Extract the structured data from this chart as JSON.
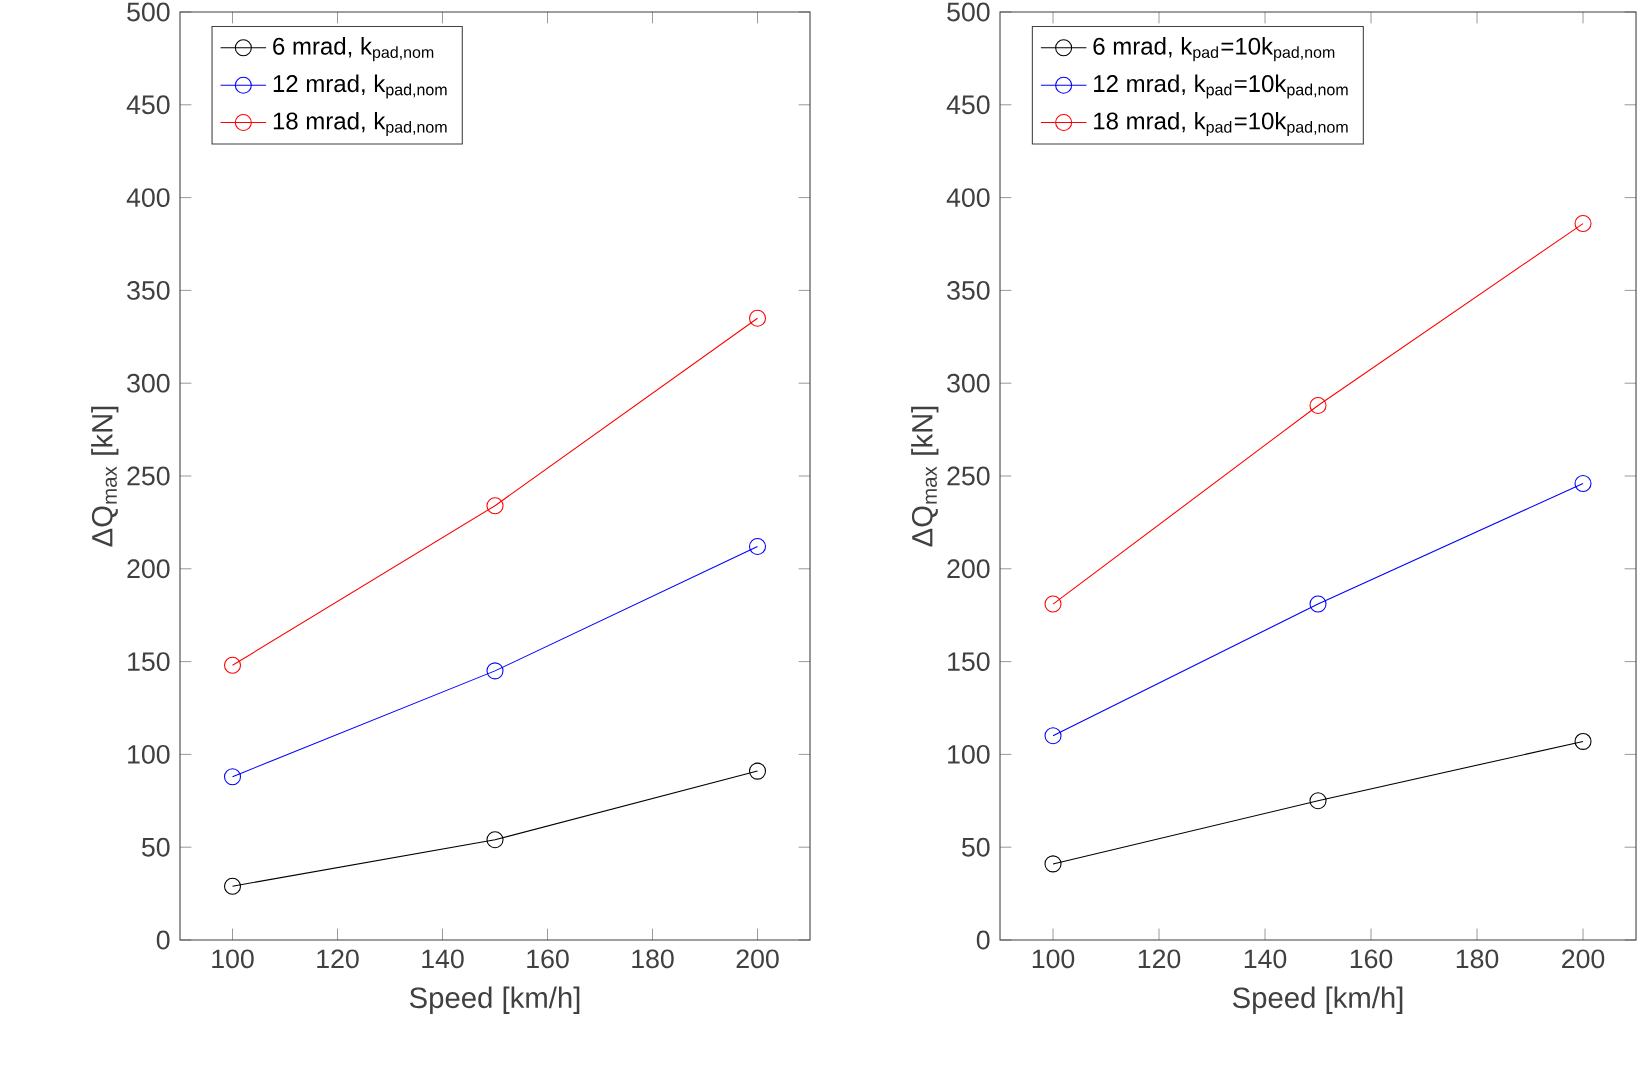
{
  "chart_data": [
    {
      "type": "line",
      "xlabel": "Speed [km/h]",
      "ylabel": "ΔQ$_{max}$ [kN]",
      "x": [
        100,
        150,
        200
      ],
      "series": [
        {
          "name": "6 mrad, k$_{pad,nom}$",
          "color": "#000000",
          "values": [
            29,
            54,
            91
          ]
        },
        {
          "name": "12 mrad, k$_{pad,nom}$",
          "color": "#0000ff",
          "values": [
            88,
            145,
            212
          ]
        },
        {
          "name": "18 mrad, k$_{pad,nom}$",
          "color": "#ff0000",
          "values": [
            148,
            234,
            335
          ]
        }
      ],
      "xlim": [
        90,
        210
      ],
      "ylim": [
        0,
        500
      ],
      "xticks": [
        100,
        120,
        140,
        160,
        180,
        200
      ],
      "yticks": [
        0,
        50,
        100,
        150,
        200,
        250,
        300,
        350,
        400,
        450,
        500
      ],
      "marker": "circle",
      "legend": "top left"
    },
    {
      "type": "line",
      "xlabel": "Speed [km/h]",
      "ylabel": "ΔQ$_{max}$ [kN]",
      "x": [
        100,
        150,
        200
      ],
      "series": [
        {
          "name": "6 mrad, k$_{pad}$=10k$_{pad,nom}$",
          "color": "#000000",
          "values": [
            41,
            75,
            107
          ]
        },
        {
          "name": "12 mrad, k$_{pad}$=10k$_{pad,nom}$",
          "color": "#0000ff",
          "values": [
            110,
            181,
            246
          ]
        },
        {
          "name": "18 mrad, k$_{pad}$=10k$_{pad,nom}$",
          "color": "#ff0000",
          "values": [
            181,
            288,
            386
          ]
        }
      ],
      "xlim": [
        90,
        210
      ],
      "ylim": [
        0,
        500
      ],
      "xticks": [
        100,
        120,
        140,
        160,
        180,
        200
      ],
      "yticks": [
        0,
        50,
        100,
        150,
        200,
        250,
        300,
        350,
        400,
        450,
        500
      ],
      "marker": "circle",
      "legend": "top left"
    }
  ]
}
